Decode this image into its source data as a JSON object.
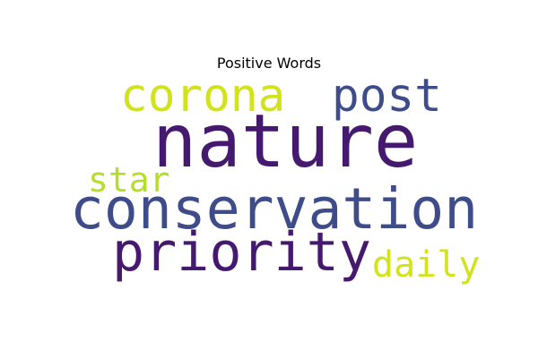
{
  "title": "Positive Words",
  "words": {
    "corona": {
      "text": "corona",
      "color": "#d2e21b"
    },
    "post": {
      "text": "post",
      "color": "#3e4c8a"
    },
    "nature": {
      "text": "nature",
      "color": "#45196e"
    },
    "star": {
      "text": "star",
      "color": "#b5de2b"
    },
    "conservation": {
      "text": "conservation",
      "color": "#3e4c8a"
    },
    "priority": {
      "text": "priority",
      "color": "#45196e"
    },
    "daily": {
      "text": "daily",
      "color": "#d2e21b"
    }
  }
}
